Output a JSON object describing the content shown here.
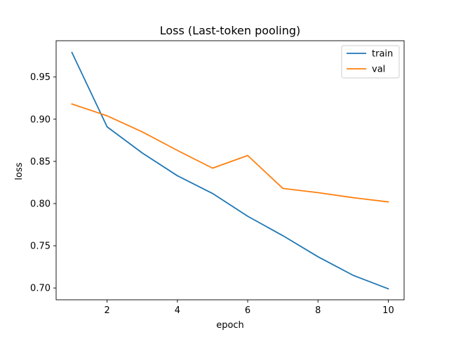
{
  "chart_data": {
    "type": "line",
    "title": "Loss (Last-token pooling)",
    "xlabel": "epoch",
    "ylabel": "loss",
    "x": [
      1,
      2,
      3,
      4,
      5,
      6,
      7,
      8,
      9,
      10
    ],
    "xlim": [
      0.55,
      10.45
    ],
    "ylim": [
      0.686,
      0.993
    ],
    "xticks": [
      2,
      4,
      6,
      8,
      10
    ],
    "xtick_labels": [
      "2",
      "4",
      "6",
      "8",
      "10"
    ],
    "yticks": [
      0.7,
      0.75,
      0.8,
      0.85,
      0.9,
      0.95
    ],
    "ytick_labels": [
      "0.70",
      "0.75",
      "0.80",
      "0.85",
      "0.90",
      "0.95"
    ],
    "grid": false,
    "legend_position": "top-right",
    "series": [
      {
        "name": "train",
        "color": "#1f77b4",
        "values": [
          0.979,
          0.891,
          0.86,
          0.833,
          0.812,
          0.785,
          0.762,
          0.737,
          0.715,
          0.699
        ]
      },
      {
        "name": "val",
        "color": "#ff7f0e",
        "values": [
          0.918,
          0.904,
          0.885,
          0.863,
          0.842,
          0.857,
          0.818,
          0.813,
          0.807,
          0.802
        ]
      }
    ]
  }
}
